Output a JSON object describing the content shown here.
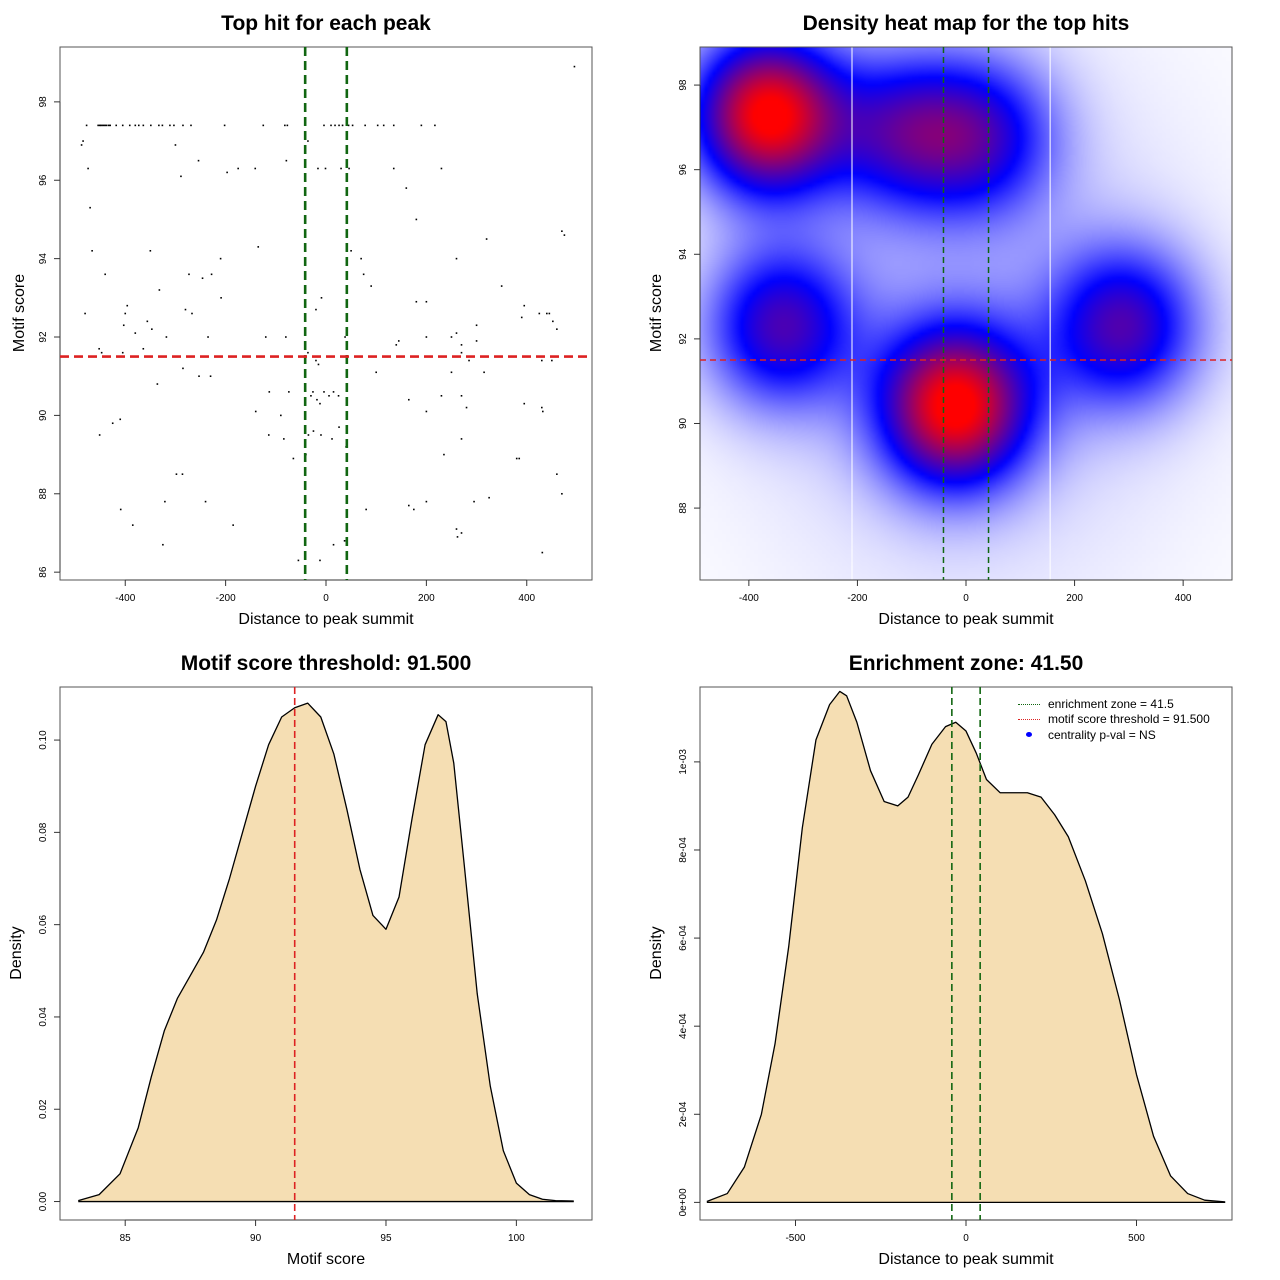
{
  "chart_data": [
    {
      "type": "scatter",
      "title": "Top hit for each peak",
      "xlabel": "Distance to peak summit",
      "ylabel": "Motif score",
      "xlim": [
        -530,
        530
      ],
      "ylim": [
        85.8,
        99.4
      ],
      "xticks": [
        -400,
        -200,
        0,
        200,
        400
      ],
      "yticks": [
        86,
        88,
        90,
        92,
        94,
        96,
        98
      ],
      "hlines": [
        {
          "y": 91.5,
          "color": "#dd2222",
          "style": "dashed"
        }
      ],
      "vlines": [
        {
          "x": -41.5,
          "color": "#116611",
          "style": "dashed"
        },
        {
          "x": 41.5,
          "color": "#116611",
          "style": "dashed"
        }
      ],
      "points": [
        [
          -487,
          96.9
        ],
        [
          -484,
          97.0
        ],
        [
          -477,
          97.4
        ],
        [
          -474,
          96.3
        ],
        [
          -470,
          95.3
        ],
        [
          -466,
          94.2
        ],
        [
          -480,
          92.6
        ],
        [
          -454,
          97.4
        ],
        [
          -451,
          97.4
        ],
        [
          -449,
          97.4
        ],
        [
          -446,
          97.4
        ],
        [
          -443,
          97.4
        ],
        [
          -440,
          97.4
        ],
        [
          -437,
          97.4
        ],
        [
          -433,
          97.4
        ],
        [
          -430,
          97.4
        ],
        [
          -418,
          97.4
        ],
        [
          -405,
          97.4
        ],
        [
          -391,
          97.4
        ],
        [
          -380,
          97.4
        ],
        [
          -373,
          97.4
        ],
        [
          -364,
          97.4
        ],
        [
          -349,
          97.4
        ],
        [
          -333,
          97.4
        ],
        [
          -326,
          97.4
        ],
        [
          -311,
          97.4
        ],
        [
          -303,
          97.4
        ],
        [
          -285,
          97.4
        ],
        [
          -269,
          97.4
        ],
        [
          -202,
          97.4
        ],
        [
          -125,
          97.4
        ],
        [
          -82,
          97.4
        ],
        [
          -77,
          97.4
        ],
        [
          -300,
          96.9
        ],
        [
          -289,
          96.1
        ],
        [
          -254,
          96.5
        ],
        [
          -197,
          96.2
        ],
        [
          -175,
          96.3
        ],
        [
          -141,
          96.3
        ],
        [
          -79,
          96.5
        ],
        [
          -440,
          93.6
        ],
        [
          -350,
          94.2
        ],
        [
          -332,
          93.2
        ],
        [
          -273,
          93.6
        ],
        [
          -235,
          92.0
        ],
        [
          -246,
          93.5
        ],
        [
          -210,
          94.0
        ],
        [
          -135,
          94.3
        ],
        [
          -400,
          92.6
        ],
        [
          -403,
          92.3
        ],
        [
          -396,
          92.8
        ],
        [
          -380,
          92.1
        ],
        [
          -356,
          92.4
        ],
        [
          -347,
          92.2
        ],
        [
          -318,
          92.0
        ],
        [
          -280,
          92.7
        ],
        [
          -267,
          92.6
        ],
        [
          -228,
          93.6
        ],
        [
          -209,
          93.0
        ],
        [
          -120,
          92.0
        ],
        [
          -80,
          92.0
        ],
        [
          -452,
          91.7
        ],
        [
          -447,
          91.6
        ],
        [
          -405,
          91.6
        ],
        [
          -364,
          91.7
        ],
        [
          -285,
          91.2
        ],
        [
          -253,
          91.0
        ],
        [
          -230,
          91.0
        ],
        [
          -140,
          90.1
        ],
        [
          -113,
          90.6
        ],
        [
          -90,
          90.0
        ],
        [
          -74,
          90.6
        ],
        [
          -336,
          90.8
        ],
        [
          -410,
          89.9
        ],
        [
          -425,
          89.8
        ],
        [
          -451,
          89.5
        ],
        [
          -114,
          89.5
        ],
        [
          -84,
          89.4
        ],
        [
          -65,
          88.9
        ],
        [
          -298,
          88.5
        ],
        [
          -286,
          88.5
        ],
        [
          -240,
          87.8
        ],
        [
          -321,
          87.8
        ],
        [
          -409,
          87.6
        ],
        [
          -385,
          87.2
        ],
        [
          -185,
          87.2
        ],
        [
          -325,
          86.7
        ],
        [
          -55,
          86.3
        ],
        [
          -36,
          97.0
        ],
        [
          -4,
          97.4
        ],
        [
          10,
          97.4
        ],
        [
          18,
          97.4
        ],
        [
          26,
          97.4
        ],
        [
          33,
          97.4
        ],
        [
          45,
          97.4
        ],
        [
          53,
          97.4
        ],
        [
          78,
          97.4
        ],
        [
          103,
          97.4
        ],
        [
          115,
          97.4
        ],
        [
          135,
          97.4
        ],
        [
          190,
          97.4
        ],
        [
          217,
          97.4
        ],
        [
          -16,
          96.3
        ],
        [
          -1,
          96.3
        ],
        [
          30,
          96.3
        ],
        [
          46,
          96.3
        ],
        [
          135,
          96.3
        ],
        [
          230,
          96.3
        ],
        [
          495,
          98.9
        ],
        [
          160,
          95.8
        ],
        [
          180,
          95.0
        ],
        [
          260,
          94.0
        ],
        [
          320,
          94.5
        ],
        [
          350,
          93.3
        ],
        [
          470,
          94.7
        ],
        [
          475,
          94.6
        ],
        [
          50,
          94.2
        ],
        [
          70,
          94.0
        ],
        [
          75,
          93.6
        ],
        [
          90,
          93.3
        ],
        [
          180,
          92.9
        ],
        [
          200,
          92.9
        ],
        [
          260,
          92.1
        ],
        [
          300,
          92.3
        ],
        [
          390,
          92.5
        ],
        [
          395,
          92.8
        ],
        [
          425,
          92.6
        ],
        [
          440,
          92.6
        ],
        [
          445,
          92.6
        ],
        [
          452,
          92.4
        ],
        [
          460,
          92.2
        ],
        [
          -9,
          93.0
        ],
        [
          -20,
          92.7
        ],
        [
          38,
          92.0
        ],
        [
          -36,
          91.6
        ],
        [
          140,
          91.8
        ],
        [
          145,
          91.9
        ],
        [
          200,
          92.0
        ],
        [
          250,
          92.0
        ],
        [
          270,
          91.8
        ],
        [
          300,
          91.9
        ],
        [
          250,
          91.1
        ],
        [
          270,
          91.6
        ],
        [
          285,
          91.4
        ],
        [
          430,
          91.4
        ],
        [
          450,
          91.4
        ],
        [
          -20,
          91.4
        ],
        [
          -15,
          91.3
        ],
        [
          100,
          91.1
        ],
        [
          315,
          91.1
        ],
        [
          -26,
          90.6
        ],
        [
          -4,
          90.6
        ],
        [
          6,
          90.5
        ],
        [
          15,
          90.6
        ],
        [
          25,
          90.5
        ],
        [
          -30,
          90.5
        ],
        [
          -18,
          90.4
        ],
        [
          -12,
          90.3
        ],
        [
          165,
          90.4
        ],
        [
          200,
          90.1
        ],
        [
          230,
          90.5
        ],
        [
          270,
          90.5
        ],
        [
          280,
          90.2
        ],
        [
          395,
          90.3
        ],
        [
          430,
          90.2
        ],
        [
          432,
          90.1
        ],
        [
          26,
          89.7
        ],
        [
          -35,
          89.5
        ],
        [
          -25,
          89.6
        ],
        [
          -10,
          89.5
        ],
        [
          12,
          89.4
        ],
        [
          40,
          89.2
        ],
        [
          -40,
          89.0
        ],
        [
          235,
          89.0
        ],
        [
          270,
          89.4
        ],
        [
          380,
          88.9
        ],
        [
          385,
          88.9
        ],
        [
          460,
          88.5
        ],
        [
          470,
          88.0
        ],
        [
          325,
          87.9
        ],
        [
          295,
          87.8
        ],
        [
          175,
          87.6
        ],
        [
          200,
          87.8
        ],
        [
          165,
          87.7
        ],
        [
          80,
          87.6
        ],
        [
          260,
          87.1
        ],
        [
          270,
          87.0
        ],
        [
          262,
          86.9
        ],
        [
          431,
          86.5
        ],
        [
          37,
          86.8
        ],
        [
          15,
          86.7
        ],
        [
          -12,
          86.3
        ]
      ]
    },
    {
      "type": "heatmap",
      "title": "Density heat map for the top hits",
      "xlabel": "Distance to peak summit",
      "ylabel": "Motif score",
      "xlim": [
        -490,
        490
      ],
      "ylim": [
        86.3,
        98.9
      ],
      "xticks": [
        -400,
        -200,
        0,
        200,
        400
      ],
      "yticks": [
        88,
        90,
        92,
        94,
        96,
        98
      ],
      "colors": [
        "#ffffff",
        "#0000ff",
        "#ff0000"
      ],
      "density_peaks": [
        {
          "x": -365,
          "y": 97.3,
          "strength": 1.0
        },
        {
          "x": -20,
          "y": 90.4,
          "strength": 0.95
        },
        {
          "x": -340,
          "y": 92.3,
          "strength": 0.55
        },
        {
          "x": 290,
          "y": 92.3,
          "strength": 0.55
        },
        {
          "x": 30,
          "y": 96.8,
          "strength": 0.45
        },
        {
          "x": -120,
          "y": 96.9,
          "strength": 0.45
        }
      ],
      "white_vlines": [
        -210,
        155
      ],
      "hlines": [
        {
          "y": 91.5,
          "color": "#dd2222",
          "style": "dashed"
        }
      ],
      "vlines": [
        {
          "x": -41.5,
          "color": "#116611",
          "style": "dashed"
        },
        {
          "x": 41.5,
          "color": "#116611",
          "style": "dashed"
        }
      ]
    },
    {
      "type": "area",
      "title": "Motif score threshold: 91.500",
      "xlabel": "Motif score",
      "ylabel": "Density",
      "xlim": [
        82.5,
        102.9
      ],
      "ylim": [
        -0.004,
        0.1115
      ],
      "xticks": [
        85,
        90,
        95,
        100
      ],
      "yticks": [
        0.0,
        0.02,
        0.04,
        0.06,
        0.08,
        0.1
      ],
      "ytick_labels": [
        "0.00",
        "0.02",
        "0.04",
        "0.06",
        "0.08",
        "0.10"
      ],
      "fill": "#f5deb3",
      "vlines": [
        {
          "x": 91.5,
          "color": "#dd2222",
          "style": "dashed"
        }
      ],
      "x": [
        83.2,
        84.0,
        84.8,
        85.5,
        86.0,
        86.5,
        87.0,
        87.5,
        88.0,
        88.5,
        89.0,
        89.5,
        90.0,
        90.5,
        91.0,
        91.5,
        92.0,
        92.5,
        93.0,
        93.5,
        94.0,
        94.5,
        95.0,
        95.5,
        96.0,
        96.5,
        97.0,
        97.3,
        97.6,
        98.0,
        98.5,
        99.0,
        99.5,
        100.0,
        100.5,
        101.0,
        101.5,
        102.2
      ],
      "y": [
        0.0002,
        0.0015,
        0.006,
        0.016,
        0.027,
        0.037,
        0.044,
        0.049,
        0.054,
        0.061,
        0.07,
        0.08,
        0.09,
        0.099,
        0.105,
        0.107,
        0.108,
        0.105,
        0.097,
        0.085,
        0.072,
        0.062,
        0.059,
        0.066,
        0.083,
        0.099,
        0.1055,
        0.104,
        0.095,
        0.073,
        0.045,
        0.025,
        0.011,
        0.004,
        0.0015,
        0.0005,
        0.0002,
        0.0001
      ]
    },
    {
      "type": "area",
      "title": "Enrichment zone: 41.50",
      "xlabel": "Distance to peak summit",
      "ylabel": "Density",
      "xlim": [
        -780,
        780
      ],
      "ylim": [
        -4e-05,
        0.00117
      ],
      "xticks": [
        -500,
        0,
        500
      ],
      "yticks": [
        0,
        0.0002,
        0.0004,
        0.0006,
        0.0008,
        0.001
      ],
      "ytick_labels": [
        "0e+00",
        "2e-04",
        "4e-04",
        "6e-04",
        "8e-04",
        "1e-03"
      ],
      "fill": "#f5deb3",
      "vlines": [
        {
          "x": -41.5,
          "color": "#116611",
          "style": "dashed"
        },
        {
          "x": 41.5,
          "color": "#116611",
          "style": "dashed"
        }
      ],
      "legend": {
        "position": "top-right",
        "entries": [
          {
            "label": "enrichment zone = 41.5",
            "color": "#116611",
            "symbol": "dotted-line"
          },
          {
            "label": "motif score threshold = 91.500",
            "color": "#dd2222",
            "symbol": "dotted-line"
          },
          {
            "label": "centrality p-val = NS",
            "color": "#0000ff",
            "symbol": "dot"
          }
        ]
      },
      "x": [
        -760,
        -700,
        -650,
        -600,
        -560,
        -520,
        -480,
        -440,
        -400,
        -370,
        -350,
        -320,
        -280,
        -240,
        -200,
        -170,
        -140,
        -100,
        -60,
        -30,
        0,
        30,
        60,
        100,
        140,
        180,
        220,
        260,
        300,
        350,
        400,
        450,
        500,
        550,
        600,
        650,
        700,
        760
      ],
      "y": [
        2e-06,
        2e-05,
        8e-05,
        0.0002,
        0.00036,
        0.00058,
        0.00085,
        0.00105,
        0.00113,
        0.00116,
        0.00115,
        0.00109,
        0.00098,
        0.00091,
        0.0009,
        0.00092,
        0.00097,
        0.00104,
        0.00108,
        0.00109,
        0.00107,
        0.00102,
        0.00096,
        0.00093,
        0.00093,
        0.00093,
        0.00092,
        0.00088,
        0.00083,
        0.00073,
        0.00061,
        0.00046,
        0.00029,
        0.00015,
        6e-05,
        2e-05,
        5e-06,
        1e-06
      ]
    }
  ]
}
